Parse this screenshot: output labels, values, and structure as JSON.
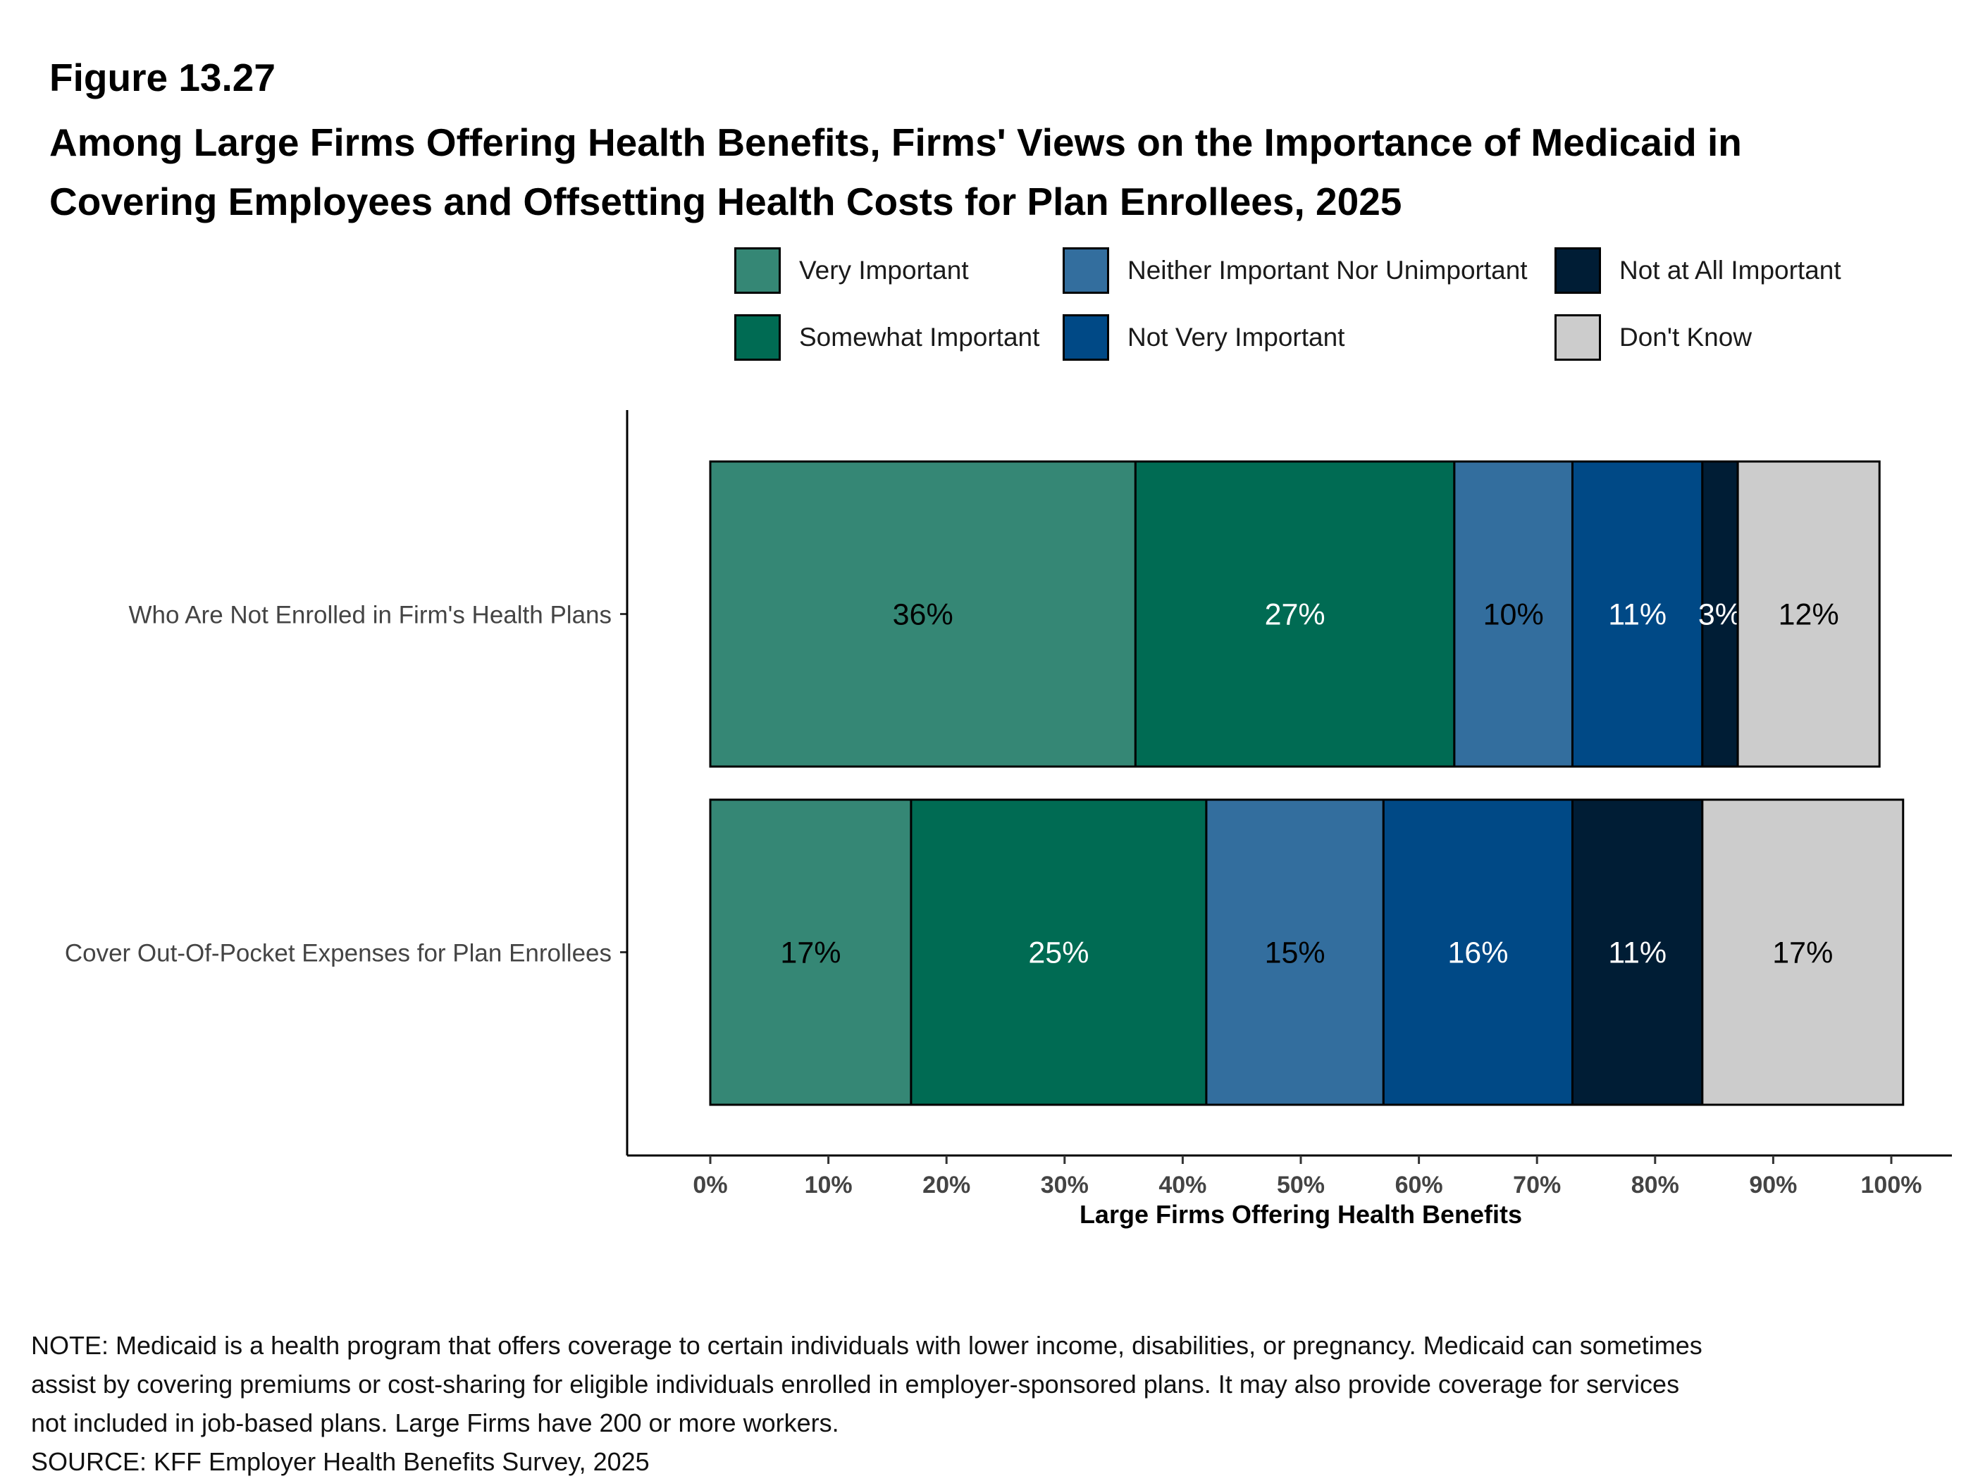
{
  "figure_number": "Figure 13.27",
  "title": "Among Large Firms Offering Health Benefits, Firms' Views on the Importance of Medicaid in Covering Employees and Offsetting Health Costs for Plan Enrollees, 2025",
  "colors": {
    "very_important": "#358775",
    "somewhat_important": "#006B53",
    "neither": "#336E9E",
    "not_very": "#004986",
    "not_at_all": "#001D35",
    "dont_know": "#CCCCCC"
  },
  "legend": [
    {
      "label": "Very Important",
      "color": "#358775"
    },
    {
      "label": "Neither Important Nor Unimportant",
      "color": "#336E9E"
    },
    {
      "label": "Not at All Important",
      "color": "#001D35"
    },
    {
      "label": "Somewhat Important",
      "color": "#006B53"
    },
    {
      "label": "Not Very Important",
      "color": "#004986"
    },
    {
      "label": "Don't Know",
      "color": "#CCCCCC"
    }
  ],
  "chart_data": {
    "type": "bar",
    "orientation": "horizontal",
    "stacked": true,
    "categories": [
      "Who Are Not Enrolled in Firm's Health Plans",
      "Cover Out-Of-Pocket Expenses for Plan Enrollees"
    ],
    "series": [
      {
        "name": "Very Important",
        "values": [
          36,
          17
        ],
        "labels": [
          "36%",
          "17%"
        ],
        "color": "#358775",
        "label_color": "#000000"
      },
      {
        "name": "Somewhat Important",
        "values": [
          27,
          25
        ],
        "labels": [
          "27%",
          "25%"
        ],
        "color": "#006B53",
        "label_color": "#FFFFFF"
      },
      {
        "name": "Neither Important Nor Unimportant",
        "values": [
          10,
          15
        ],
        "labels": [
          "10%",
          "15%"
        ],
        "color": "#336E9E",
        "label_color": "#000000"
      },
      {
        "name": "Not Very Important",
        "values": [
          11,
          16
        ],
        "labels": [
          "11%",
          "16%"
        ],
        "color": "#004986",
        "label_color": "#FFFFFF"
      },
      {
        "name": "Not at All Important",
        "values": [
          3,
          11
        ],
        "labels": [
          "3%",
          "11%"
        ],
        "color": "#001D35",
        "label_color": "#FFFFFF"
      },
      {
        "name": "Don't Know",
        "values": [
          12,
          17
        ],
        "labels": [
          "12%",
          "17%"
        ],
        "color": "#CCCCCC",
        "label_color": "#000000"
      }
    ],
    "xlim": [
      0,
      100
    ],
    "xticks": [
      "0%",
      "10%",
      "20%",
      "30%",
      "40%",
      "50%",
      "60%",
      "70%",
      "80%",
      "90%",
      "100%"
    ],
    "xlabel": "Large Firms Offering Health Benefits",
    "ylabel": "",
    "legend_position": "top",
    "grid": false
  },
  "notes": [
    "NOTE: Medicaid is a health program that offers coverage to certain individuals with lower income, disabilities, or pregnancy. Medicaid can sometimes",
    "assist by covering premiums or cost-sharing for eligible individuals enrolled in employer-sponsored plans. It may also provide coverage for services",
    "not included in job-based plans. Large Firms have 200 or more workers.",
    "SOURCE: KFF Employer Health Benefits Survey, 2025"
  ]
}
